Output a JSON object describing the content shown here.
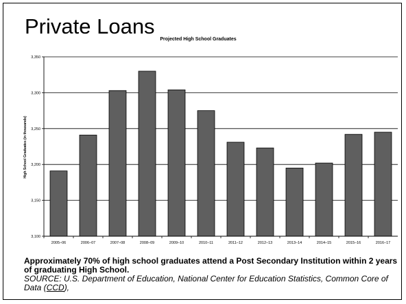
{
  "slide": {
    "title": "Private Loans"
  },
  "caption": {
    "headline": "Approximately 70% of high school graduates attend a Post Secondary Institution within 2 years of graduating High School.",
    "source_prefix": "SOURCE: U.S. Department of Education, National Center for Education Statistics, Common Core of Data (",
    "source_link": "CCD",
    "source_suffix": "),"
  },
  "chart_data": {
    "type": "bar",
    "title": "Projected High School Graduates",
    "xlabel": "",
    "ylabel": "High School Graduates (in thousands)",
    "categories": [
      "2005–06",
      "2006–07",
      "2007–08",
      "2008–09",
      "2009–10",
      "2010–11",
      "2011–12",
      "2012–13",
      "2013–14",
      "2014–15",
      "2015–16",
      "2016–17"
    ],
    "values": [
      3191,
      3241,
      3303,
      3330,
      3304,
      3275,
      3231,
      3223,
      3195,
      3202,
      3242,
      3245
    ],
    "ylim": [
      3100,
      3350
    ],
    "yticks": [
      3100,
      3150,
      3200,
      3250,
      3300,
      3350
    ],
    "ytick_labels": [
      "3,100",
      "3,150",
      "3,200",
      "3,250",
      "3,300",
      "3,350"
    ],
    "grid": true,
    "bar_color": "#5f5f5f"
  }
}
